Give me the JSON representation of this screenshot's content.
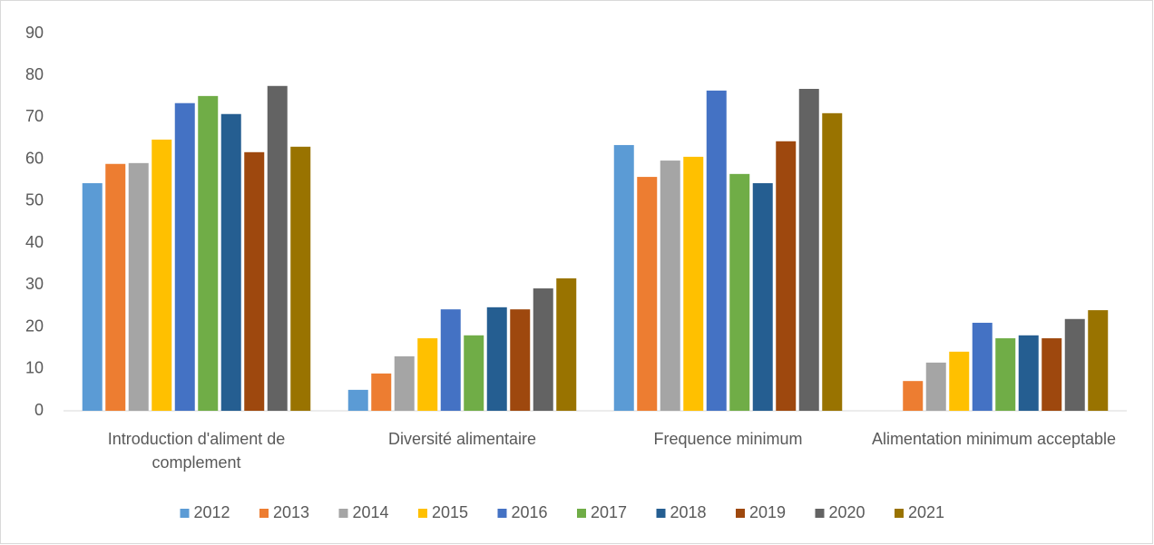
{
  "chart_data": {
    "type": "bar",
    "categories": [
      "Introduction d'aliment de complement",
      "Diversité alimentaire",
      "Frequence minimum",
      "Alimentation minimum acceptable"
    ],
    "series": [
      {
        "name": "2012",
        "color": "#5b9bd5",
        "values": [
          54.3,
          5.0,
          63.4,
          null
        ]
      },
      {
        "name": "2013",
        "color": "#ed7d31",
        "values": [
          58.9,
          8.9,
          55.8,
          7.1
        ]
      },
      {
        "name": "2014",
        "color": "#a5a5a5",
        "values": [
          59.1,
          13.0,
          59.7,
          11.5
        ]
      },
      {
        "name": "2015",
        "color": "#ffc000",
        "values": [
          64.7,
          17.3,
          60.6,
          14.1
        ]
      },
      {
        "name": "2016",
        "color": "#4472c4",
        "values": [
          73.4,
          24.2,
          76.4,
          21.0
        ]
      },
      {
        "name": "2017",
        "color": "#70ad47",
        "values": [
          75.1,
          18.0,
          56.5,
          17.3
        ]
      },
      {
        "name": "2018",
        "color": "#255e91",
        "values": [
          70.8,
          24.7,
          54.3,
          18.0
        ]
      },
      {
        "name": "2019",
        "color": "#9e480e",
        "values": [
          61.7,
          24.2,
          64.3,
          17.3
        ]
      },
      {
        "name": "2020",
        "color": "#636363",
        "values": [
          77.5,
          29.2,
          76.8,
          21.9
        ]
      },
      {
        "name": "2021",
        "color": "#997300",
        "values": [
          63.0,
          31.6,
          71.0,
          24.0
        ]
      }
    ],
    "ylim": [
      0,
      90
    ],
    "yticks": [
      0,
      10,
      20,
      30,
      40,
      50,
      60,
      70,
      80,
      90
    ],
    "grid": false,
    "legend": "bottom"
  }
}
